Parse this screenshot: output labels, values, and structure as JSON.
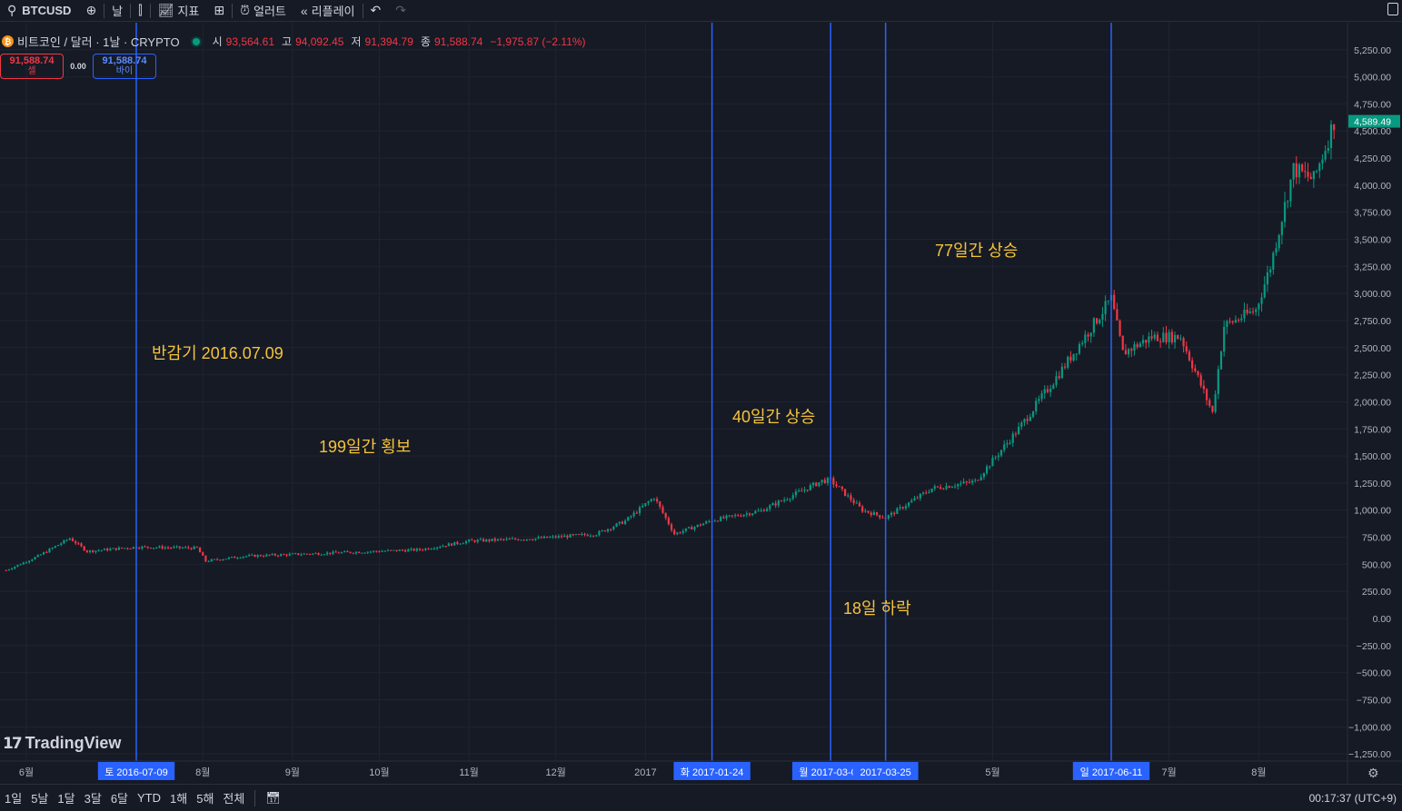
{
  "toolbar": {
    "symbol": "BTCUSD",
    "interval": "날",
    "indicators": "지표",
    "alert": "얼러트",
    "replay": "리플레이",
    "icons": [
      "search-icon",
      "plus-circle-icon",
      "candles-icon",
      "chart-indicators-icon",
      "layout-grid-icon",
      "alarm-icon",
      "rewind-icon",
      "undo-icon",
      "redo-icon",
      "fullscreen-icon"
    ]
  },
  "legend": {
    "coin_glyph": "₿",
    "title": "비트코인 / 달러 · 1날 · CRYPTO",
    "open_label": "시",
    "open": "93,564.61",
    "high_label": "고",
    "high": "94,092.45",
    "low_label": "저",
    "low": "91,394.79",
    "close_label": "종",
    "close": "91,588.74",
    "change": "−1,975.87 (−2.11%)"
  },
  "trade": {
    "sell_price": "91,588.74",
    "sell_label": "셀",
    "spread": "0.00",
    "buy_price": "91,588.74",
    "buy_label": "바이"
  },
  "colors": {
    "up": "#089981",
    "down": "#f23645",
    "marker_line": "#2962ff",
    "annotation": "#f5c33b",
    "background": "#161a25",
    "grid": "#1f2430"
  },
  "annotations": {
    "halving": "반감기 2016.07.09",
    "sideways": "199일간 횡보",
    "rise40": "40일간 상승",
    "fall18": "18일 하락",
    "rise77": "77일간 상승"
  },
  "branding": {
    "name": "TradingView"
  },
  "chart_data": {
    "type": "candlestick",
    "symbol": "BTCUSD",
    "interval": "1D",
    "y_ticks": [
      5250,
      5000,
      4750,
      4500,
      4250,
      4000,
      3750,
      3500,
      3250,
      3000,
      2750,
      2500,
      2250,
      2000,
      1750,
      1500,
      1250,
      1000,
      750,
      500,
      250,
      0,
      -250,
      -500,
      -750,
      -1000,
      -1250
    ],
    "y_tick_labels": [
      "5,250.00",
      "5,000.00",
      "4,750.00",
      "4,500.00",
      "4,250.00",
      "4,000.00",
      "3,750.00",
      "3,500.00",
      "3,250.00",
      "3,000.00",
      "2,750.00",
      "2,500.00",
      "2,250.00",
      "2,000.00",
      "1,750.00",
      "1,500.00",
      "1,250.00",
      "1,000.00",
      "750.00",
      "500.00",
      "250.00",
      "0.00",
      "−250.00",
      "−500.00",
      "−750.00",
      "−1,000.00",
      "−1,250.00"
    ],
    "x_ticks": [
      {
        "date": "2016-06-01",
        "label": "6월"
      },
      {
        "date": "2016-08-01",
        "label": "8월"
      },
      {
        "date": "2016-09-01",
        "label": "9월"
      },
      {
        "date": "2016-10-01",
        "label": "10월"
      },
      {
        "date": "2016-11-01",
        "label": "11월"
      },
      {
        "date": "2016-12-01",
        "label": "12월"
      },
      {
        "date": "2017-01-01",
        "label": "2017"
      },
      {
        "date": "2017-05-01",
        "label": "5월"
      },
      {
        "date": "2017-07-01",
        "label": "7월"
      },
      {
        "date": "2017-08-01",
        "label": "8월"
      }
    ],
    "last_price_label": "4,589.49",
    "last_price": 4589.49,
    "marked_dates": [
      {
        "date": "2016-07-09",
        "label": "토 2016-07-09"
      },
      {
        "date": "2017-01-24",
        "label": "화 2017-01-24"
      },
      {
        "date": "2017-03-06",
        "label": "월 2017-03-06"
      },
      {
        "date": "2017-03-25",
        "label": "2017-03-25"
      },
      {
        "date": "2017-06-11",
        "label": "일 2017-06-11"
      }
    ],
    "price_path": [
      {
        "date": "2016-05-25",
        "close": 445
      },
      {
        "date": "2016-06-05",
        "close": 575
      },
      {
        "date": "2016-06-16",
        "close": 740
      },
      {
        "date": "2016-06-22",
        "close": 620
      },
      {
        "date": "2016-07-09",
        "close": 660
      },
      {
        "date": "2016-07-30",
        "close": 650
      },
      {
        "date": "2016-08-02",
        "close": 530
      },
      {
        "date": "2016-08-15",
        "close": 575
      },
      {
        "date": "2016-09-15",
        "close": 605
      },
      {
        "date": "2016-10-15",
        "close": 635
      },
      {
        "date": "2016-11-01",
        "close": 715
      },
      {
        "date": "2016-11-25",
        "close": 740
      },
      {
        "date": "2016-12-15",
        "close": 780
      },
      {
        "date": "2016-12-25",
        "close": 900
      },
      {
        "date": "2017-01-04",
        "close": 1120
      },
      {
        "date": "2017-01-11",
        "close": 780
      },
      {
        "date": "2017-01-24",
        "close": 905
      },
      {
        "date": "2017-02-10",
        "close": 995
      },
      {
        "date": "2017-03-03",
        "close": 1270
      },
      {
        "date": "2017-03-06",
        "close": 1275
      },
      {
        "date": "2017-03-17",
        "close": 1000
      },
      {
        "date": "2017-03-25",
        "close": 930
      },
      {
        "date": "2017-04-10",
        "close": 1200
      },
      {
        "date": "2017-04-25",
        "close": 1265
      },
      {
        "date": "2017-05-10",
        "close": 1750
      },
      {
        "date": "2017-05-25",
        "close": 2300
      },
      {
        "date": "2017-06-11",
        "close": 2950
      },
      {
        "date": "2017-06-15",
        "close": 2450
      },
      {
        "date": "2017-06-25",
        "close": 2600
      },
      {
        "date": "2017-07-05",
        "close": 2600
      },
      {
        "date": "2017-07-16",
        "close": 1900
      },
      {
        "date": "2017-07-20",
        "close": 2700
      },
      {
        "date": "2017-07-31",
        "close": 2850
      },
      {
        "date": "2017-08-05",
        "close": 3250
      },
      {
        "date": "2017-08-13",
        "close": 4150
      },
      {
        "date": "2017-08-20",
        "close": 4050
      },
      {
        "date": "2017-08-24",
        "close": 4350
      },
      {
        "date": "2017-08-27",
        "close": 4589.49
      }
    ]
  },
  "range_buttons": [
    "1일",
    "5날",
    "1달",
    "3달",
    "6달",
    "YTD",
    "1해",
    "5해",
    "전체"
  ],
  "clock": "00:17:37 (UTC+9)"
}
